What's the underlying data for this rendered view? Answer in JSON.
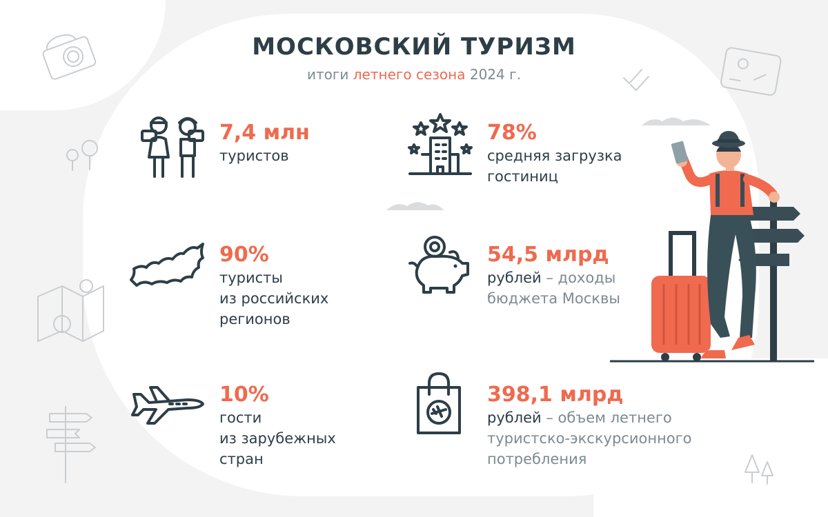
{
  "header": {
    "title": "МОСКОВСКИЙ ТУРИЗМ",
    "subtitle_pre": "итоги ",
    "subtitle_accent": "летнего сезона",
    "subtitle_post": " 2024 г."
  },
  "stats": {
    "tourists": {
      "value": "7,4 млн",
      "line1": "туристов",
      "icon": "tourists-icon"
    },
    "regions": {
      "value": "90%",
      "line1": "туристы",
      "line2": "из российских",
      "line3": "регионов",
      "icon": "russia-map-icon"
    },
    "foreign": {
      "value": "10%",
      "line1": "гости",
      "line2": "из зарубежных",
      "line3": "стран",
      "icon": "airplane-icon"
    },
    "hotels": {
      "value": "78%",
      "line1": "средняя загрузка",
      "line2": "гостиниц",
      "icon": "hotel-stars-icon"
    },
    "budget": {
      "value": "54,5 млрд",
      "line1_strong": "рублей",
      "line1_muted": " – доходы",
      "line2_muted": "бюджета Москвы",
      "icon": "piggy-bank-icon"
    },
    "consumption": {
      "value": "398,1 млрд",
      "line1_strong": "рублей",
      "line1_muted": " – объем летнего",
      "line2_muted": "туристско-экскурсионного",
      "line3_muted": "потребления",
      "icon": "shopping-bag-icon"
    }
  },
  "colors": {
    "accent": "#ef6a4f",
    "dark": "#2d3e47",
    "muted": "#7d8a90"
  }
}
